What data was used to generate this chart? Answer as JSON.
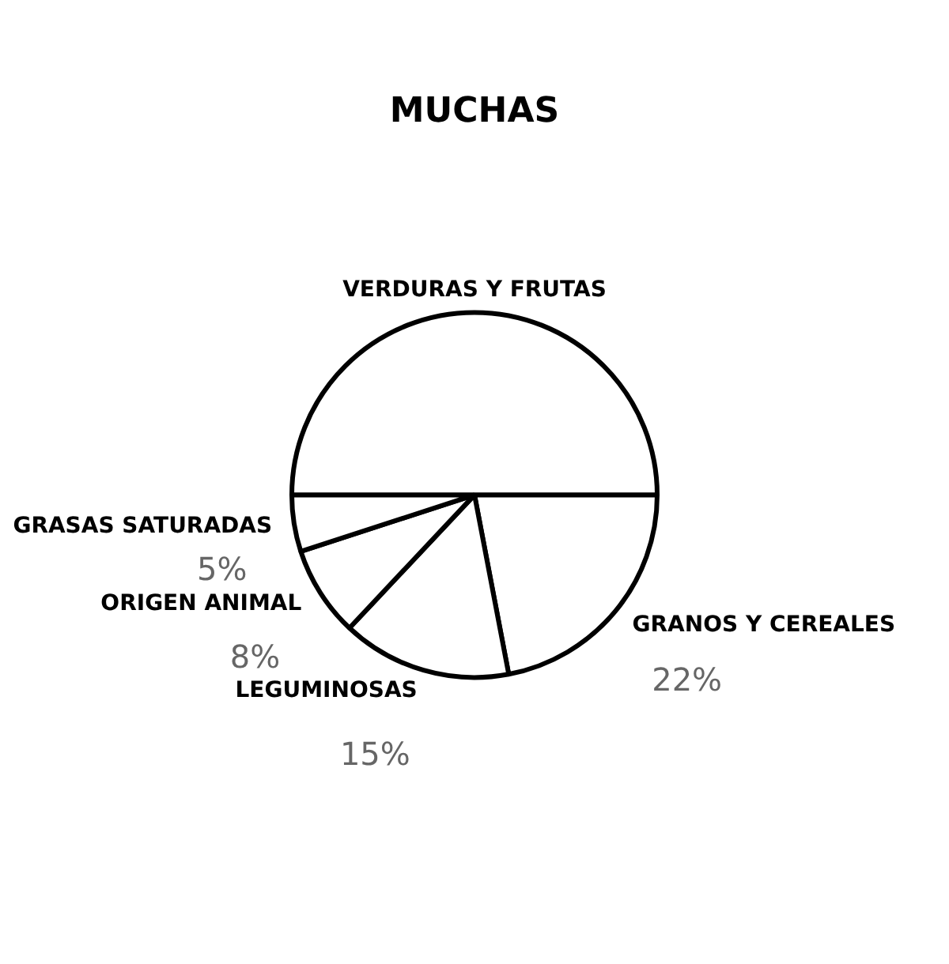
{
  "chart_data": {
    "type": "pie",
    "title": "MUCHAS",
    "categories": [
      "VERDURAS Y FRUTAS",
      "GRANOS Y CEREALES",
      "LEGUMINOSAS",
      "ORIGEN ANIMAL",
      "GRASAS SATURADAS"
    ],
    "values": [
      50,
      22,
      15,
      8,
      5
    ],
    "value_labels": [
      null,
      "22%",
      "15%",
      "8%",
      "5%"
    ],
    "colors": [
      "#ffffff",
      "#ffffff",
      "#ffffff",
      "#ffffff",
      "#ffffff"
    ],
    "legend": false
  }
}
